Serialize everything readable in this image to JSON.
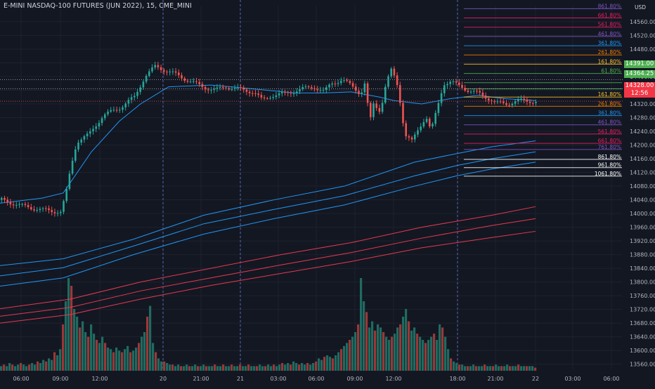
{
  "header": {
    "title": "E-MINI NASDAQ-100 FUTURES (JUN 2022), 15, CME_MINI",
    "currency": "USD"
  },
  "colors": {
    "background": "#131722",
    "up": "#26a69a",
    "down": "#ef5350",
    "vol_up": "#1f6b61",
    "vol_down": "#9b3838",
    "blue_ma": "#2196f3",
    "red_ma": "#e53950",
    "label_green": "#4caf50",
    "label_red": "#f23645",
    "grid": "#1e222d",
    "text": "#b2b5be"
  },
  "price_badges": [
    {
      "value": "14391.00",
      "color": "green"
    },
    {
      "value": "14364.25",
      "color": "green"
    },
    {
      "value": "14328.00",
      "sub": "12:56",
      "color": "red"
    }
  ],
  "chart_data": {
    "type": "candlestick",
    "title": "E-MINI NASDAQ-100 FUTURES (JUN 2022), 15, CME_MINI",
    "ylim": [
      13545,
      14607
    ],
    "y_ticks": [
      "14560.00",
      "14520.00",
      "14480.00",
      "14440.00",
      "14400.00",
      "14360.00",
      "14320.00",
      "14280.00",
      "14240.00",
      "14200.00",
      "14160.00",
      "14120.00",
      "14080.00",
      "14040.00",
      "14000.00",
      "13960.00",
      "13920.00",
      "13880.00",
      "13840.00",
      "13800.00",
      "13760.00",
      "13720.00",
      "13680.00",
      "13640.00",
      "13600.00",
      "13560.00"
    ],
    "x_ticks": [
      "06:00",
      "09:00",
      "12:00",
      "20",
      "21:00",
      "21",
      "03:00",
      "06:00",
      "09:00",
      "12:00",
      "18:00",
      "21:00",
      "22",
      "03:00",
      "06:00"
    ],
    "session_breaks": [
      "20",
      "21",
      "18:00"
    ],
    "fib_levels": [
      {
        "label": "861.80%",
        "price": 14598,
        "color": "#7e57c2"
      },
      {
        "label": "661.80%",
        "price": 14571,
        "color": "#e91e63"
      },
      {
        "label": "561.80%",
        "price": 14544,
        "color": "#e91e63"
      },
      {
        "label": "461.80%",
        "price": 14517,
        "color": "#7e57c2"
      },
      {
        "label": "361.80%",
        "price": 14490,
        "color": "#2196f3"
      },
      {
        "label": "261.80%",
        "price": 14463,
        "color": "#f57c00"
      },
      {
        "label": "161.80%",
        "price": 14436,
        "color": "#fbc02d"
      },
      {
        "label": "61.80%",
        "price": 14409,
        "color": "#4caf50"
      },
      {
        "label": "",
        "price": 14382,
        "color": "#4caf50"
      },
      {
        "label": "",
        "price": 14364,
        "color": "#4caf50"
      },
      {
        "label": "161.80%",
        "price": 14340,
        "color": "#fbc02d"
      },
      {
        "label": "261.80%",
        "price": 14313,
        "color": "#f57c00"
      },
      {
        "label": "361.80%",
        "price": 14286,
        "color": "#2196f3"
      },
      {
        "label": "461.80%",
        "price": 14259,
        "color": "#7e57c2"
      },
      {
        "label": "561.80%",
        "price": 14232,
        "color": "#e91e63"
      },
      {
        "label": "661.80%",
        "price": 14205,
        "color": "#e91e63"
      },
      {
        "label": "761.80%",
        "price": 14187,
        "color": "#7e57c2"
      },
      {
        "label": "861.80%",
        "price": 14158,
        "color": "#ffffff"
      },
      {
        "label": "961.80%",
        "price": 14134,
        "color": "#ffffff"
      },
      {
        "label": "1061.80%",
        "price": 14109,
        "color": "#ffffff"
      }
    ],
    "dotted_levels": [
      14391,
      14364.25
    ],
    "close_line": 14328,
    "moving_averages": [
      {
        "color": "#2196f3",
        "points": [
          [
            0,
            14030
          ],
          [
            60,
            14045
          ],
          [
            90,
            14060
          ],
          [
            130,
            14180
          ],
          [
            170,
            14270
          ],
          [
            200,
            14320
          ],
          [
            240,
            14370
          ],
          [
            300,
            14375
          ],
          [
            340,
            14368
          ],
          [
            380,
            14360
          ],
          [
            420,
            14352
          ],
          [
            460,
            14352
          ],
          [
            500,
            14355
          ],
          [
            540,
            14340
          ],
          [
            560,
            14330
          ],
          [
            600,
            14320
          ],
          [
            640,
            14335
          ],
          [
            680,
            14345
          ],
          [
            720,
            14335
          ],
          [
            762,
            14330
          ]
        ]
      },
      {
        "color": "#2196f3",
        "points": [
          [
            0,
            13848
          ],
          [
            90,
            13868
          ],
          [
            190,
            13925
          ],
          [
            290,
            13995
          ],
          [
            390,
            14040
          ],
          [
            490,
            14080
          ],
          [
            590,
            14150
          ],
          [
            650,
            14175
          ],
          [
            700,
            14195
          ],
          [
            762,
            14212
          ]
        ]
      },
      {
        "color": "#2196f3",
        "points": [
          [
            0,
            13818
          ],
          [
            90,
            13842
          ],
          [
            190,
            13905
          ],
          [
            290,
            13970
          ],
          [
            390,
            14012
          ],
          [
            490,
            14052
          ],
          [
            590,
            14110
          ],
          [
            650,
            14140
          ],
          [
            700,
            14160
          ],
          [
            762,
            14180
          ]
        ]
      },
      {
        "color": "#2196f3",
        "points": [
          [
            0,
            13788
          ],
          [
            90,
            13812
          ],
          [
            190,
            13880
          ],
          [
            290,
            13940
          ],
          [
            390,
            13985
          ],
          [
            490,
            14025
          ],
          [
            590,
            14080
          ],
          [
            650,
            14110
          ],
          [
            700,
            14130
          ],
          [
            762,
            14150
          ]
        ]
      },
      {
        "color": "#e53950",
        "points": [
          [
            0,
            13722
          ],
          [
            100,
            13750
          ],
          [
            200,
            13800
          ],
          [
            300,
            13840
          ],
          [
            400,
            13880
          ],
          [
            500,
            13915
          ],
          [
            600,
            13960
          ],
          [
            700,
            13995
          ],
          [
            762,
            14020
          ]
        ]
      },
      {
        "color": "#e53950",
        "points": [
          [
            0,
            13700
          ],
          [
            100,
            13726
          ],
          [
            200,
            13774
          ],
          [
            300,
            13812
          ],
          [
            400,
            13850
          ],
          [
            500,
            13886
          ],
          [
            600,
            13928
          ],
          [
            700,
            13965
          ],
          [
            762,
            13985
          ]
        ]
      },
      {
        "color": "#e53950",
        "points": [
          [
            0,
            13680
          ],
          [
            100,
            13705
          ],
          [
            200,
            13750
          ],
          [
            300,
            13790
          ],
          [
            400,
            13825
          ],
          [
            500,
            13860
          ],
          [
            600,
            13900
          ],
          [
            700,
            13930
          ],
          [
            762,
            13948
          ]
        ]
      }
    ],
    "candle_path": [
      [
        0,
        14040
      ],
      [
        30,
        14022
      ],
      [
        60,
        14010
      ],
      [
        85,
        14005
      ],
      [
        92,
        14050
      ],
      [
        100,
        14140
      ],
      [
        108,
        14210
      ],
      [
        125,
        14230
      ],
      [
        145,
        14285
      ],
      [
        170,
        14310
      ],
      [
        190,
        14340
      ],
      [
        205,
        14400
      ],
      [
        220,
        14430
      ],
      [
        232,
        14420
      ],
      [
        250,
        14405
      ],
      [
        270,
        14385
      ],
      [
        290,
        14368
      ],
      [
        305,
        14360
      ],
      [
        320,
        14370
      ],
      [
        340,
        14362
      ],
      [
        360,
        14355
      ],
      [
        372,
        14330
      ],
      [
        385,
        14345
      ],
      [
        405,
        14350
      ],
      [
        425,
        14362
      ],
      [
        445,
        14370
      ],
      [
        460,
        14355
      ],
      [
        470,
        14380
      ],
      [
        485,
        14390
      ],
      [
        500,
        14372
      ],
      [
        512,
        14350
      ],
      [
        518,
        14380
      ],
      [
        525,
        14265
      ],
      [
        530,
        14320
      ],
      [
        540,
        14300
      ],
      [
        548,
        14380
      ],
      [
        556,
        14420
      ],
      [
        565,
        14370
      ],
      [
        575,
        14230
      ],
      [
        585,
        14210
      ],
      [
        595,
        14250
      ],
      [
        605,
        14285
      ],
      [
        612,
        14240
      ],
      [
        620,
        14300
      ],
      [
        630,
        14380
      ],
      [
        640,
        14385
      ],
      [
        652,
        14372
      ],
      [
        665,
        14360
      ],
      [
        680,
        14350
      ],
      [
        695,
        14335
      ],
      [
        705,
        14322
      ],
      [
        720,
        14320
      ],
      [
        735,
        14330
      ],
      [
        750,
        14328
      ],
      [
        762,
        14328
      ]
    ],
    "volume_bars": [
      [
        0,
        3
      ],
      [
        4,
        4
      ],
      [
        8,
        3
      ],
      [
        12,
        5
      ],
      [
        16,
        4
      ],
      [
        20,
        3
      ],
      [
        24,
        4
      ],
      [
        28,
        5
      ],
      [
        32,
        4
      ],
      [
        36,
        3
      ],
      [
        40,
        4
      ],
      [
        44,
        5
      ],
      [
        48,
        4
      ],
      [
        52,
        6
      ],
      [
        56,
        5
      ],
      [
        60,
        7
      ],
      [
        64,
        6
      ],
      [
        68,
        8
      ],
      [
        72,
        7
      ],
      [
        76,
        12
      ],
      [
        80,
        10
      ],
      [
        84,
        14
      ],
      [
        88,
        30
      ],
      [
        92,
        45
      ],
      [
        96,
        60
      ],
      [
        100,
        55
      ],
      [
        104,
        40
      ],
      [
        108,
        35
      ],
      [
        112,
        28
      ],
      [
        116,
        32
      ],
      [
        120,
        25
      ],
      [
        124,
        22
      ],
      [
        128,
        30
      ],
      [
        132,
        24
      ],
      [
        136,
        20
      ],
      [
        140,
        18
      ],
      [
        144,
        22
      ],
      [
        148,
        18
      ],
      [
        152,
        15
      ],
      [
        156,
        14
      ],
      [
        160,
        12
      ],
      [
        164,
        15
      ],
      [
        168,
        13
      ],
      [
        172,
        12
      ],
      [
        176,
        14
      ],
      [
        180,
        16
      ],
      [
        184,
        12
      ],
      [
        188,
        13
      ],
      [
        192,
        15
      ],
      [
        196,
        18
      ],
      [
        200,
        22
      ],
      [
        204,
        25
      ],
      [
        208,
        35
      ],
      [
        212,
        42
      ],
      [
        216,
        18
      ],
      [
        220,
        12
      ],
      [
        224,
        8
      ],
      [
        228,
        6
      ],
      [
        232,
        6
      ],
      [
        236,
        5
      ],
      [
        240,
        4
      ],
      [
        244,
        4
      ],
      [
        248,
        3
      ],
      [
        252,
        4
      ],
      [
        256,
        3
      ],
      [
        260,
        3
      ],
      [
        264,
        4
      ],
      [
        268,
        3
      ],
      [
        272,
        3
      ],
      [
        276,
        4
      ],
      [
        280,
        3
      ],
      [
        284,
        3
      ],
      [
        288,
        4
      ],
      [
        292,
        3
      ],
      [
        296,
        3
      ],
      [
        300,
        3
      ],
      [
        304,
        4
      ],
      [
        308,
        3
      ],
      [
        312,
        3
      ],
      [
        316,
        4
      ],
      [
        320,
        3
      ],
      [
        324,
        3
      ],
      [
        328,
        4
      ],
      [
        332,
        3
      ],
      [
        336,
        3
      ],
      [
        340,
        4
      ],
      [
        344,
        3
      ],
      [
        348,
        3
      ],
      [
        352,
        4
      ],
      [
        356,
        3
      ],
      [
        360,
        3
      ],
      [
        364,
        3
      ],
      [
        368,
        4
      ],
      [
        372,
        3
      ],
      [
        376,
        3
      ],
      [
        380,
        4
      ],
      [
        384,
        3
      ],
      [
        388,
        4
      ],
      [
        392,
        3
      ],
      [
        396,
        4
      ],
      [
        400,
        5
      ],
      [
        404,
        4
      ],
      [
        408,
        5
      ],
      [
        412,
        4
      ],
      [
        416,
        6
      ],
      [
        420,
        5
      ],
      [
        424,
        4
      ],
      [
        428,
        5
      ],
      [
        432,
        4
      ],
      [
        436,
        5
      ],
      [
        440,
        4
      ],
      [
        444,
        5
      ],
      [
        448,
        6
      ],
      [
        452,
        8
      ],
      [
        456,
        7
      ],
      [
        460,
        9
      ],
      [
        464,
        10
      ],
      [
        468,
        9
      ],
      [
        472,
        8
      ],
      [
        476,
        10
      ],
      [
        480,
        12
      ],
      [
        484,
        14
      ],
      [
        488,
        16
      ],
      [
        492,
        18
      ],
      [
        496,
        20
      ],
      [
        500,
        22
      ],
      [
        504,
        25
      ],
      [
        508,
        30
      ],
      [
        512,
        60
      ],
      [
        516,
        45
      ],
      [
        520,
        38
      ],
      [
        524,
        28
      ],
      [
        528,
        32
      ],
      [
        532,
        26
      ],
      [
        536,
        30
      ],
      [
        540,
        28
      ],
      [
        544,
        25
      ],
      [
        548,
        22
      ],
      [
        552,
        20
      ],
      [
        556,
        22
      ],
      [
        560,
        24
      ],
      [
        564,
        28
      ],
      [
        568,
        30
      ],
      [
        572,
        35
      ],
      [
        576,
        40
      ],
      [
        580,
        32
      ],
      [
        584,
        26
      ],
      [
        588,
        28
      ],
      [
        592,
        24
      ],
      [
        596,
        22
      ],
      [
        600,
        20
      ],
      [
        604,
        18
      ],
      [
        608,
        20
      ],
      [
        612,
        22
      ],
      [
        616,
        24
      ],
      [
        620,
        20
      ],
      [
        624,
        30
      ],
      [
        628,
        28
      ],
      [
        632,
        22
      ],
      [
        636,
        14
      ],
      [
        640,
        8
      ],
      [
        644,
        6
      ],
      [
        648,
        5
      ],
      [
        652,
        4
      ],
      [
        656,
        4
      ],
      [
        660,
        3
      ],
      [
        664,
        3
      ],
      [
        668,
        3
      ],
      [
        672,
        4
      ],
      [
        676,
        3
      ],
      [
        680,
        3
      ],
      [
        684,
        3
      ],
      [
        688,
        4
      ],
      [
        692,
        3
      ],
      [
        696,
        3
      ],
      [
        700,
        3
      ],
      [
        704,
        4
      ],
      [
        708,
        3
      ],
      [
        712,
        3
      ],
      [
        716,
        3
      ],
      [
        720,
        4
      ],
      [
        724,
        3
      ],
      [
        728,
        3
      ],
      [
        732,
        3
      ],
      [
        736,
        4
      ],
      [
        740,
        3
      ],
      [
        744,
        3
      ],
      [
        748,
        3
      ],
      [
        752,
        3
      ],
      [
        756,
        3
      ],
      [
        760,
        2
      ]
    ]
  }
}
